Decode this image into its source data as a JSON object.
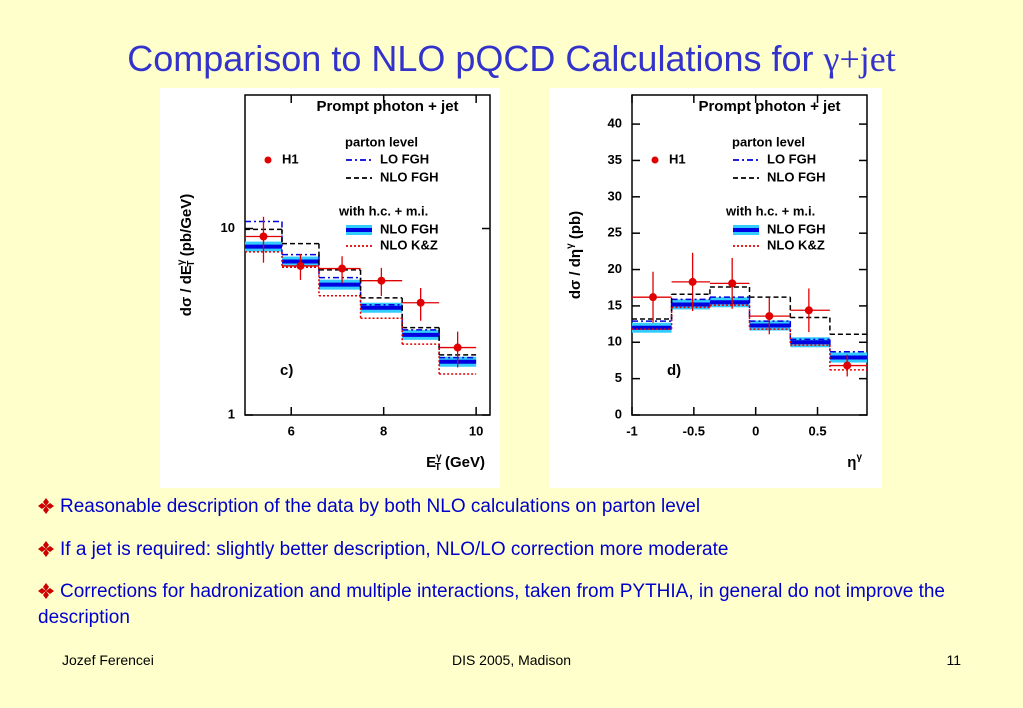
{
  "title": "Comparison to NLO pQCD Calculations for",
  "title_symbol": "γ+jet",
  "chart_data": [
    {
      "type": "step",
      "title": "Prompt photon + jet",
      "panel_label": "c)",
      "ylabel_parts": [
        "dσ / dE",
        "γ",
        "T",
        " (pb/GeV)"
      ],
      "xlabel_parts": [
        "E",
        "γ",
        "T",
        " (GeV)"
      ],
      "legend_headers": [
        "parton level",
        "with h.c. + m.i."
      ],
      "log_y": true,
      "xlim": [
        5,
        10.3
      ],
      "ylim": [
        1,
        52
      ],
      "xticks": [
        6,
        8,
        10
      ],
      "yticks": [
        1,
        10
      ],
      "bins": [
        5,
        5.8,
        6.6,
        7.5,
        8.4,
        9.2,
        10
      ],
      "x": [
        5.4,
        6.2,
        7.1,
        7.95,
        8.8,
        9.6
      ],
      "series": [
        {
          "name": "H1",
          "color": "#e00000",
          "style": "points",
          "values": [
            9.06,
            6.3,
            6.1,
            5.25,
            4.0,
            2.3
          ],
          "errors": [
            2.5,
            1.0,
            1.0,
            0.9,
            0.8,
            0.5
          ]
        },
        {
          "name": "LO FGH",
          "color": "#0000e0",
          "style": "dashdot",
          "values": [
            10.9,
            7.25,
            5.45,
            3.9,
            2.86,
            2.03
          ]
        },
        {
          "name": "NLO FGH",
          "color": "#000000",
          "style": "dashed",
          "values": [
            9.9,
            8.3,
            6.0,
            4.25,
            2.94,
            2.1
          ]
        },
        {
          "name": "NLO FGH",
          "color": "#0000e0",
          "style": "band",
          "values": [
            8.0,
            6.65,
            5.0,
            3.76,
            2.69,
            1.93
          ]
        },
        {
          "name": "NLO K&Z",
          "color": "#e00000",
          "style": "dotted",
          "values": [
            7.5,
            6.2,
            4.36,
            3.3,
            2.4,
            1.66
          ]
        }
      ]
    },
    {
      "type": "step",
      "title": "Prompt photon + jet",
      "panel_label": "d)",
      "ylabel_parts": [
        "dσ / dη",
        "γ",
        "",
        " (pb)"
      ],
      "xlabel_parts": [
        "η",
        "γ",
        "",
        ""
      ],
      "legend_headers": [
        "parton level",
        "with h.c. + m.i."
      ],
      "log_y": false,
      "xlim": [
        -1,
        0.9
      ],
      "ylim": [
        0,
        44
      ],
      "xticks": [
        -1,
        -0.5,
        0,
        0.5
      ],
      "yticks": [
        0,
        5,
        10,
        15,
        20,
        25,
        30,
        35,
        40
      ],
      "bins": [
        -1,
        -0.68,
        -0.37,
        -0.05,
        0.28,
        0.6,
        0.9
      ],
      "x": [
        -0.83,
        -0.51,
        -0.19,
        0.11,
        0.43,
        0.74
      ],
      "series": [
        {
          "name": "H1",
          "color": "#e00000",
          "style": "points",
          "values": [
            16.2,
            18.3,
            18.1,
            13.6,
            14.4,
            6.8
          ],
          "errors": [
            3.5,
            4.0,
            3.5,
            2.5,
            3.0,
            1.5
          ]
        },
        {
          "name": "LO FGH",
          "color": "#0000e0",
          "style": "dashdot",
          "values": [
            12.9,
            15.9,
            16.2,
            12.9,
            10.4,
            8.7
          ]
        },
        {
          "name": "NLO FGH",
          "color": "#000000",
          "style": "dashed",
          "values": [
            13.2,
            16.6,
            17.6,
            16.2,
            13.4,
            11.1
          ]
        },
        {
          "name": "NLO FGH",
          "color": "#0000e0",
          "style": "band",
          "values": [
            12.0,
            15.2,
            15.5,
            12.3,
            10.0,
            7.9
          ]
        },
        {
          "name": "NLO K&Z",
          "color": "#e00000",
          "style": "dotted",
          "values": [
            11.8,
            14.8,
            15.1,
            11.8,
            9.6,
            6.2
          ]
        }
      ]
    }
  ],
  "bullets": [
    "Reasonable description of the data by both NLO calculations on parton level",
    "If a jet is required: slightly better description, NLO/LO correction more moderate",
    "Corrections for hadronization and multiple interactions, taken from PYTHIA, in general do not improve the description"
  ],
  "footer": {
    "left": "Jozef Ferencei",
    "center": "DIS 2005, Madison",
    "right": "11"
  }
}
